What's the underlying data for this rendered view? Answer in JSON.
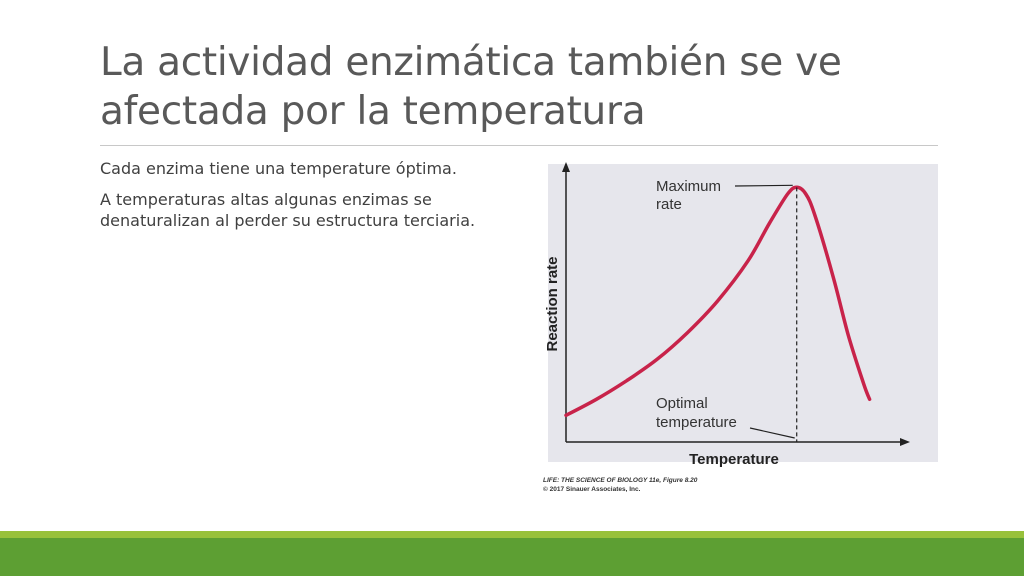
{
  "slide": {
    "title": "La actividad enzimática también se ve afectada por la temperatura",
    "bullets": [
      "Cada enzima tiene una temperature óptima.",
      "A temperaturas altas algunas enzimas se denaturalizan al perder su estructura terciaria."
    ]
  },
  "figure": {
    "credit_title": "LIFE: THE SCIENCE OF BIOLOGY 11e, Figure 8.20",
    "credit_copyright": "© 2017 Sinauer Associates, Inc."
  },
  "chart_data": {
    "type": "line",
    "xlabel": "Temperature",
    "ylabel": "Reaction rate",
    "annotations": [
      {
        "label": [
          "Maximum",
          "rate"
        ],
        "target": "peak"
      },
      {
        "label": [
          "Optimal",
          "temperature"
        ],
        "target": "optimum"
      }
    ],
    "grid": false,
    "series": [
      {
        "color": "#c8234a",
        "x": [
          0,
          0.1,
          0.2,
          0.3,
          0.4,
          0.5,
          0.6,
          0.67,
          0.73,
          0.76,
          0.79,
          0.82,
          0.88,
          0.93,
          0.98,
          1.0
        ],
        "y": [
          0.1,
          0.16,
          0.23,
          0.31,
          0.41,
          0.53,
          0.68,
          0.82,
          0.93,
          0.955,
          0.93,
          0.85,
          0.62,
          0.4,
          0.22,
          0.16
        ]
      }
    ],
    "optimum_x": 0.76,
    "xlim": [
      0,
      1.12
    ],
    "ylim": [
      0,
      1.05
    ],
    "colors": {
      "plot_background": "#e6e6ec",
      "axis": "#222222",
      "guide_line": "#222222"
    }
  }
}
